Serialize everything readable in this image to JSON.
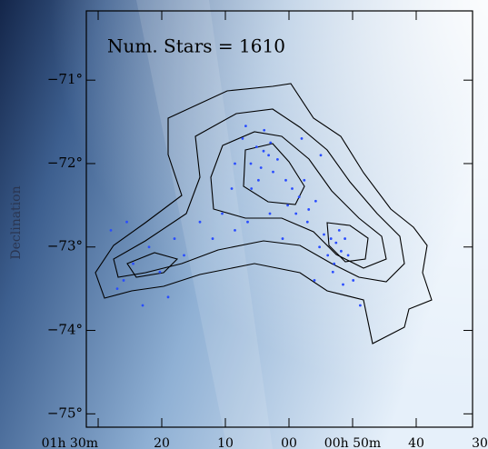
{
  "chart_data": {
    "type": "scatter",
    "annotation": "Num. Stars = 1610",
    "y_label": "Declination",
    "color": "#2a4dff",
    "xlim": [
      91.86,
      31.14
    ],
    "ylim": [
      -70.17,
      -75.16
    ],
    "xticks": [
      {
        "value": 90,
        "label": "01h 30m"
      },
      {
        "value": 80,
        "label": "20"
      },
      {
        "value": 70,
        "label": "10"
      },
      {
        "value": 60,
        "label": "00"
      },
      {
        "value": 50,
        "label": "00h 50m"
      },
      {
        "value": 40,
        "label": "40"
      },
      {
        "value": 30,
        "label": "30"
      }
    ],
    "yticks": [
      {
        "value": -71,
        "label": "−71°"
      },
      {
        "value": -72,
        "label": "−72°"
      },
      {
        "value": -73,
        "label": "−73°"
      },
      {
        "value": -74,
        "label": "−74°"
      },
      {
        "value": -75,
        "label": "−75°"
      }
    ],
    "x": [
      64,
      63.2,
      65.1,
      66,
      62.5,
      64.8,
      67.3,
      63.9,
      61.8,
      65.9,
      68.5,
      60.5,
      66.8,
      62.9,
      64.4,
      59.5,
      58.4,
      57.6,
      56.9,
      58.9,
      55.8,
      60.2,
      57.1,
      52.6,
      53.4,
      51.8,
      52.1,
      53.9,
      51.2,
      52.9,
      54.5,
      50.7,
      53.1,
      49.9,
      55.2,
      51.5,
      48.8,
      86,
      84.5,
      87,
      82,
      80.3,
      78,
      76.5,
      85.5,
      74,
      72,
      70.5,
      79,
      88,
      83,
      68.5,
      63,
      58,
      69,
      56,
      61,
      66.5,
      55
    ],
    "values": [
      -71.85,
      -71.9,
      -71.8,
      -72.0,
      -72.1,
      -72.2,
      -71.7,
      -71.6,
      -71.95,
      -72.3,
      -72.0,
      -72.2,
      -71.55,
      -71.75,
      -72.05,
      -72.3,
      -72.4,
      -72.2,
      -72.55,
      -72.6,
      -72.45,
      -72.5,
      -72.7,
      -72.95,
      -72.9,
      -73.05,
      -72.8,
      -73.1,
      -72.9,
      -73.2,
      -72.85,
      -73.1,
      -73.3,
      -73.4,
      -73.0,
      -73.45,
      -73.7,
      -73.4,
      -73.2,
      -73.5,
      -73.0,
      -73.3,
      -72.9,
      -73.1,
      -72.7,
      -72.7,
      -72.9,
      -72.6,
      -73.6,
      -72.8,
      -73.7,
      -72.8,
      -72.6,
      -71.7,
      -72.3,
      -73.4,
      -72.9,
      -72.7,
      -71.9
    ]
  }
}
